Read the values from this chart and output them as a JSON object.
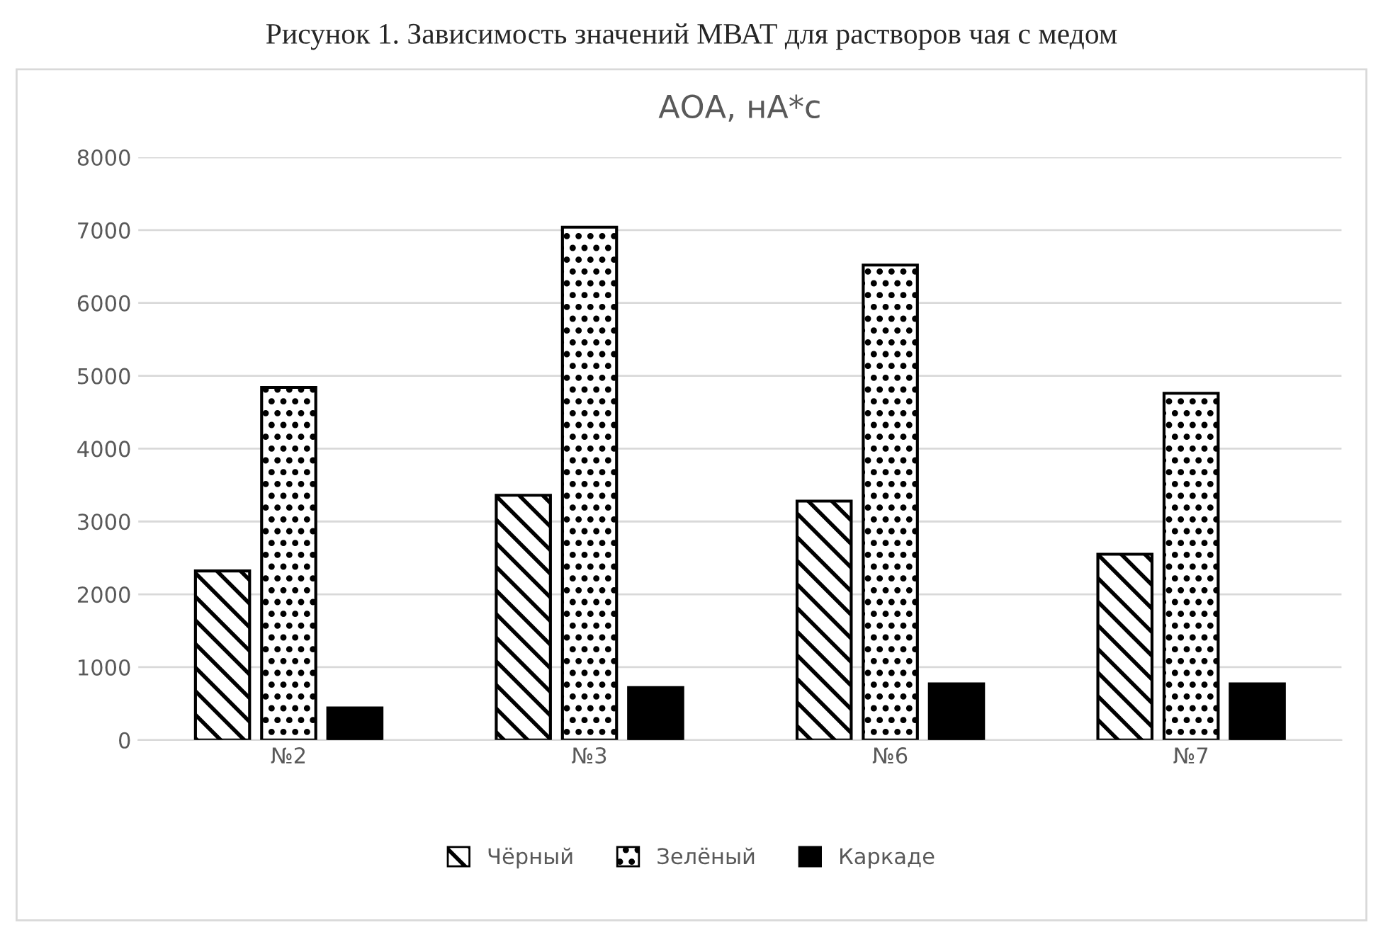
{
  "chart_data": {
    "type": "bar",
    "title": "АОА, нА*с",
    "annotations": [
      "Рисунок 1. Зависимость значений МВАТ для растворов чая с медом"
    ],
    "categories": [
      "№2",
      "№3",
      "№6",
      "№7"
    ],
    "series": [
      {
        "name": "Чёрный",
        "color": "#000000",
        "values": [
          2320,
          3360,
          3280,
          2550
        ]
      },
      {
        "name": "Зелёный",
        "color": "#000000",
        "values": [
          4840,
          7040,
          6520,
          4760
        ]
      },
      {
        "name": "Каркаде",
        "color": "#000000",
        "values": [
          440,
          720,
          770,
          770
        ]
      }
    ],
    "ylim": [
      0,
      8000
    ],
    "yticks": [
      0,
      1000,
      2000,
      3000,
      4000,
      5000,
      6000,
      7000,
      8000
    ],
    "grid": "y",
    "legend": "bottom"
  }
}
